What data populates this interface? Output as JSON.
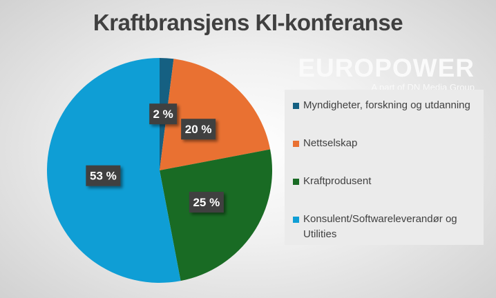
{
  "chart_data": {
    "type": "pie",
    "title": "Kraftbransjens KI-konferanse",
    "categories": [
      "Myndigheter, forskning og utdanning",
      "Nettselskap",
      "Kraftprodusent",
      "Konsulent/Softwareleverandør og Utilities"
    ],
    "values": [
      2,
      20,
      25,
      53
    ],
    "data_labels": [
      "2 %",
      "20 %",
      "25 %",
      "53 %"
    ],
    "colors": [
      "#156082",
      "#e97132",
      "#196b24",
      "#0f9ed5"
    ],
    "start_angle": "top, clockwise",
    "legend_placement": "right"
  },
  "logo": {
    "name": "EUROPOWER",
    "tagline": "A part of DN Media Group"
  }
}
